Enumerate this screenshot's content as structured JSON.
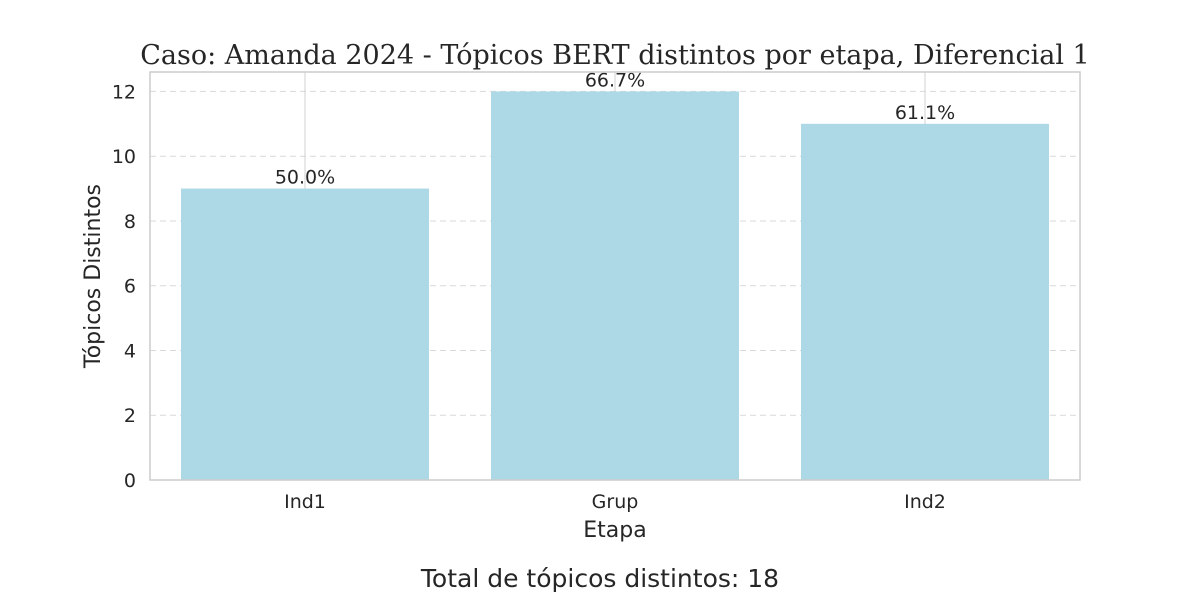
{
  "chart_data": {
    "type": "bar",
    "title": "Caso: Amanda 2024 - Tópicos BERT distintos por etapa, Diferencial 1",
    "xlabel": "Etapa",
    "ylabel": "Tópicos Distintos",
    "categories": [
      "Ind1",
      "Grup",
      "Ind2"
    ],
    "values": [
      9,
      12,
      11
    ],
    "bar_labels": [
      "50.0%",
      "66.7%",
      "61.1%"
    ],
    "ylim": [
      0,
      12.6
    ],
    "yticks": [
      "0",
      "2",
      "4",
      "6",
      "8",
      "10",
      "12"
    ],
    "grid": true,
    "bar_color": "#add8e6",
    "footer": "Total de tópicos distintos: 18"
  }
}
